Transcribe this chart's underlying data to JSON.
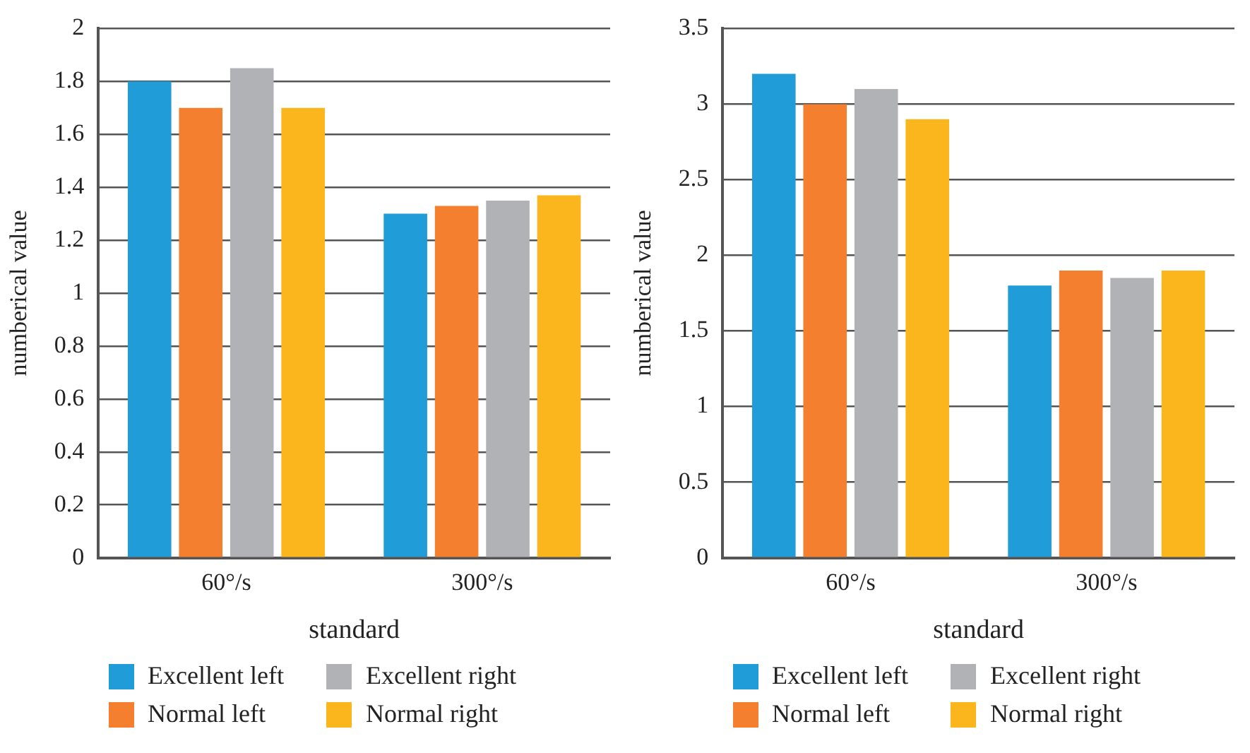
{
  "chart_data": [
    {
      "type": "bar",
      "xlabel": "standard",
      "ylabel": "numberical value",
      "categories": [
        "60°/s",
        "300°/s"
      ],
      "series": [
        {
          "name": "Excellent left",
          "color": "#209cd8",
          "values": [
            1.8,
            1.3
          ]
        },
        {
          "name": "Normal left",
          "color": "#f37f2f",
          "values": [
            1.7,
            1.33
          ]
        },
        {
          "name": "Excellent right",
          "color": "#b1b2b5",
          "values": [
            1.85,
            1.35
          ]
        },
        {
          "name": "Normal right",
          "color": "#fbb51d",
          "values": [
            1.7,
            1.37
          ]
        }
      ],
      "ylim": [
        0,
        2
      ],
      "yticks": [
        0,
        0.2,
        0.4,
        0.6,
        0.8,
        1,
        1.2,
        1.4,
        1.6,
        1.8,
        2
      ],
      "grid": "y",
      "legend": "bottom"
    },
    {
      "type": "bar",
      "xlabel": "standard",
      "ylabel": "numberical value",
      "categories": [
        "60°/s",
        "300°/s"
      ],
      "series": [
        {
          "name": "Excellent left",
          "color": "#209cd8",
          "values": [
            3.2,
            1.8
          ]
        },
        {
          "name": "Normal left",
          "color": "#f37f2f",
          "values": [
            3.0,
            1.9
          ]
        },
        {
          "name": "Excellent right",
          "color": "#b1b2b5",
          "values": [
            3.1,
            1.85
          ]
        },
        {
          "name": "Normal right",
          "color": "#fbb51d",
          "values": [
            2.9,
            1.9
          ]
        }
      ],
      "ylim": [
        0,
        3.5
      ],
      "yticks": [
        0,
        0.5,
        1,
        1.5,
        2,
        2.5,
        3,
        3.5
      ],
      "grid": "y",
      "legend": "bottom"
    }
  ]
}
